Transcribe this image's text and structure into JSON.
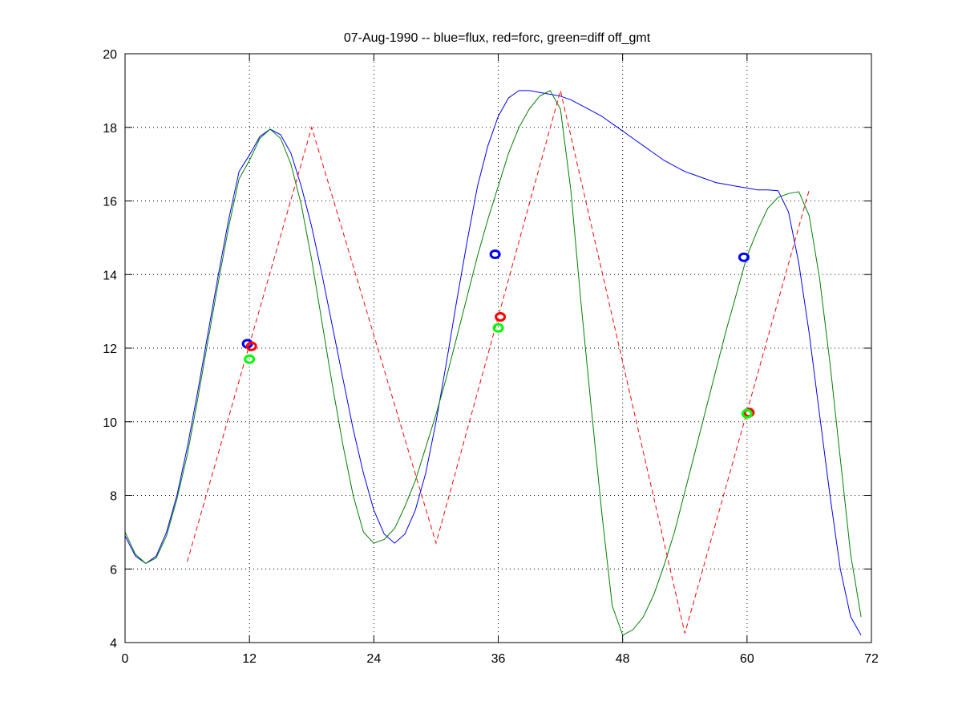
{
  "chart_data": {
    "type": "line",
    "title": "07-Aug-1990 -- blue=flux, red=forc, green=diff off_gmt",
    "xlabel": "",
    "ylabel": "",
    "xlim": [
      0,
      72
    ],
    "ylim": [
      4,
      20
    ],
    "xticks": [
      0,
      12,
      24,
      36,
      48,
      60,
      72
    ],
    "yticks": [
      4,
      6,
      8,
      10,
      12,
      14,
      16,
      18,
      20
    ],
    "grid": true,
    "series": [
      {
        "name": "flux",
        "color": "#0000ff",
        "style": "solid",
        "x": [
          0,
          1,
          2,
          3,
          4,
          5,
          6,
          7,
          8,
          9,
          10,
          11,
          12,
          13,
          14,
          15,
          16,
          17,
          18,
          19,
          20,
          21,
          22,
          23,
          24,
          25,
          26,
          27,
          28,
          29,
          30,
          31,
          32,
          33,
          34,
          35,
          36,
          37,
          38,
          39,
          40,
          41,
          42,
          43,
          44,
          45,
          46,
          47,
          48,
          49,
          50,
          51,
          52,
          53,
          54,
          55,
          56,
          57,
          58,
          59,
          60,
          61,
          62,
          63,
          64,
          65,
          66,
          67,
          68,
          69,
          70,
          71
        ],
        "values": [
          6.9,
          6.35,
          6.15,
          6.35,
          7.0,
          8.0,
          9.3,
          10.8,
          12.4,
          14.0,
          15.5,
          16.8,
          17.25,
          17.75,
          17.95,
          17.8,
          17.3,
          16.4,
          15.3,
          14.0,
          12.6,
          11.2,
          9.8,
          8.6,
          7.6,
          6.95,
          6.7,
          6.95,
          7.6,
          8.6,
          10.0,
          11.6,
          13.3,
          14.9,
          16.4,
          17.5,
          18.3,
          18.8,
          19.0,
          19.0,
          18.95,
          18.9,
          18.85,
          18.75,
          18.6,
          18.45,
          18.3,
          18.1,
          17.9,
          17.7,
          17.5,
          17.3,
          17.1,
          16.95,
          16.8,
          16.7,
          16.6,
          16.5,
          16.45,
          16.4,
          16.35,
          16.3,
          16.3,
          16.28,
          15.7,
          14.3,
          12.4,
          10.2,
          8.0,
          6.0,
          4.7,
          4.2
        ]
      },
      {
        "name": "diff",
        "color": "#008000",
        "style": "solid",
        "x": [
          0,
          1,
          2,
          3,
          4,
          5,
          6,
          7,
          8,
          9,
          10,
          11,
          12,
          13,
          14,
          15,
          16,
          17,
          18,
          19,
          20,
          21,
          22,
          23,
          24,
          25,
          26,
          27,
          28,
          29,
          30,
          31,
          32,
          33,
          34,
          35,
          36,
          37,
          38,
          39,
          40,
          41,
          42,
          43,
          44,
          45,
          46,
          47,
          48,
          49,
          50,
          51,
          52,
          53,
          54,
          55,
          56,
          57,
          58,
          59,
          60,
          61,
          62,
          63,
          64,
          65,
          66,
          67,
          68,
          69,
          70,
          71
        ],
        "values": [
          7.0,
          6.4,
          6.15,
          6.3,
          6.9,
          7.9,
          9.1,
          10.6,
          12.2,
          13.8,
          15.3,
          16.6,
          17.1,
          17.7,
          17.95,
          17.7,
          17.0,
          15.9,
          14.4,
          12.7,
          11.0,
          9.4,
          8.0,
          7.0,
          6.7,
          6.8,
          7.1,
          7.7,
          8.4,
          9.3,
          10.2,
          11.2,
          12.3,
          13.4,
          14.5,
          15.5,
          16.4,
          17.3,
          18.0,
          18.5,
          18.85,
          19.0,
          18.5,
          16.3,
          13.2,
          10.3,
          7.5,
          5.0,
          4.2,
          4.35,
          4.7,
          5.3,
          6.1,
          7.0,
          8.1,
          9.2,
          10.3,
          11.4,
          12.5,
          13.5,
          14.5,
          15.2,
          15.8,
          16.1,
          16.2,
          16.25,
          15.6,
          13.9,
          11.6,
          9.0,
          6.4,
          4.7
        ]
      },
      {
        "name": "forc",
        "color": "#ff0000",
        "style": "dashed",
        "x": [
          6,
          18,
          30,
          42,
          54,
          66
        ],
        "values": [
          6.2,
          18.0,
          6.7,
          19.0,
          4.25,
          16.3
        ]
      }
    ],
    "markers": [
      {
        "name": "flux",
        "color": "#0000ff",
        "x": [
          11.8,
          35.7,
          59.7
        ],
        "values": [
          12.12,
          14.55,
          14.47
        ]
      },
      {
        "name": "forc",
        "color": "#ff0000",
        "x": [
          12.2,
          36.2,
          60.2
        ],
        "values": [
          12.05,
          12.85,
          10.25
        ]
      },
      {
        "name": "diff",
        "color": "#00ff00",
        "x": [
          12.0,
          36.0,
          60.0
        ],
        "values": [
          11.7,
          12.55,
          10.22
        ]
      }
    ]
  }
}
